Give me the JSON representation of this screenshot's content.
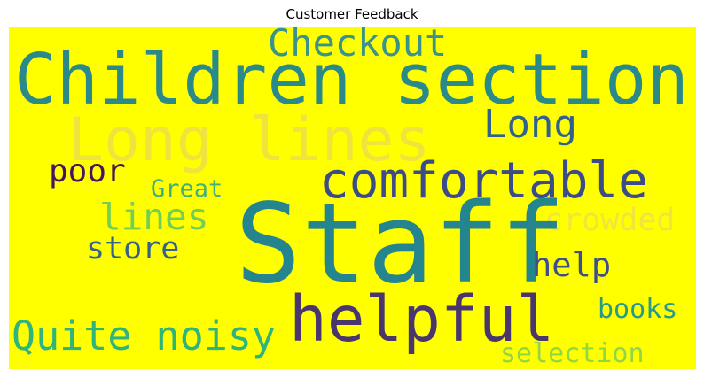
{
  "title": "Customer Feedback",
  "background_color": "#ffff00",
  "words": [
    {
      "text": "Children section",
      "color": "#2a8a89"
    },
    {
      "text": "Checkout",
      "color": "#3a9389"
    },
    {
      "text": "Long lines",
      "color": "#efe43d"
    },
    {
      "text": "Long",
      "color": "#31618d"
    },
    {
      "text": "comfortable",
      "color": "#3b4c88"
    },
    {
      "text": "poor",
      "color": "#48145e"
    },
    {
      "text": "Great",
      "color": "#3faf7c"
    },
    {
      "text": "lines",
      "color": "#72cf55"
    },
    {
      "text": "crowded",
      "color": "#f0e53f"
    },
    {
      "text": "Staff",
      "color": "#25858e"
    },
    {
      "text": "store",
      "color": "#33628d"
    },
    {
      "text": "help",
      "color": "#3c4f8a"
    },
    {
      "text": "helpful",
      "color": "#49366f"
    },
    {
      "text": "Quite noisy",
      "color": "#2fb47c"
    },
    {
      "text": "books",
      "color": "#2a9a88"
    },
    {
      "text": "selection",
      "color": "#8fd744"
    }
  ]
}
